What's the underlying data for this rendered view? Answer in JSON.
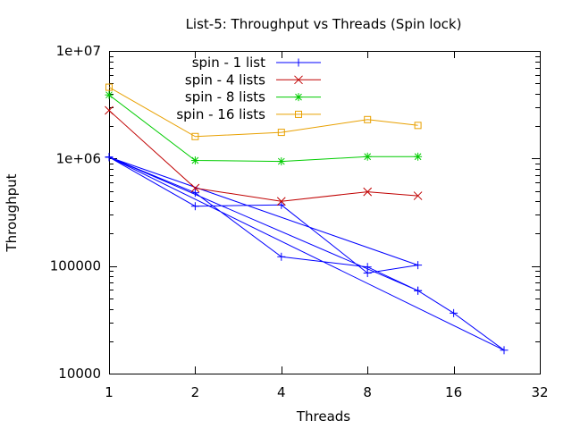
{
  "chart_data": {
    "type": "line",
    "title": "List-5: Throughput vs Threads (Spin lock)",
    "xlabel": "Threads",
    "ylabel": "Throughput",
    "x_scale": "log2",
    "y_scale": "log10",
    "xlim": [
      1,
      32
    ],
    "ylim": [
      10000,
      10000000
    ],
    "x_ticks": [
      1,
      2,
      4,
      8,
      16,
      32
    ],
    "x_tick_labels": [
      "1",
      "2",
      "4",
      "8",
      "16",
      "32"
    ],
    "y_ticks": [
      10000,
      100000,
      1000000,
      10000000
    ],
    "y_tick_labels": [
      "10000",
      "100000",
      "1e+06",
      "1e+07"
    ],
    "grid": false,
    "legend_position": "top-left",
    "series": [
      {
        "name": "spin - 1 list",
        "color": "#0000ff",
        "marker": "plus",
        "points": [
          [
            1,
            1030000
          ],
          [
            2,
            360000
          ],
          [
            4,
            370000
          ],
          [
            8,
            86000
          ],
          [
            12,
            102000
          ],
          [
            1,
            1030000
          ],
          [
            2,
            480000
          ],
          [
            4,
            122000
          ],
          [
            8,
            98000
          ],
          [
            12,
            59000
          ],
          [
            1,
            1030000
          ],
          [
            24,
            16500
          ],
          [
            16,
            36500
          ],
          [
            12,
            59000
          ]
        ]
      },
      {
        "name": "spin - 4 lists",
        "color": "#c00000",
        "marker": "cross",
        "points": [
          [
            1,
            2800000
          ],
          [
            2,
            530000
          ],
          [
            4,
            400000
          ],
          [
            8,
            490000
          ],
          [
            12,
            450000
          ]
        ]
      },
      {
        "name": "spin - 8 lists",
        "color": "#00cc00",
        "marker": "star",
        "points": [
          [
            1,
            3900000
          ],
          [
            2,
            960000
          ],
          [
            4,
            940000
          ],
          [
            8,
            1040000
          ],
          [
            12,
            1040000
          ]
        ]
      },
      {
        "name": "spin - 16 lists",
        "color": "#e8a000",
        "marker": "square",
        "points": [
          [
            1,
            4600000
          ],
          [
            2,
            1600000
          ],
          [
            4,
            1750000
          ],
          [
            8,
            2300000
          ],
          [
            12,
            2030000
          ]
        ]
      }
    ]
  }
}
